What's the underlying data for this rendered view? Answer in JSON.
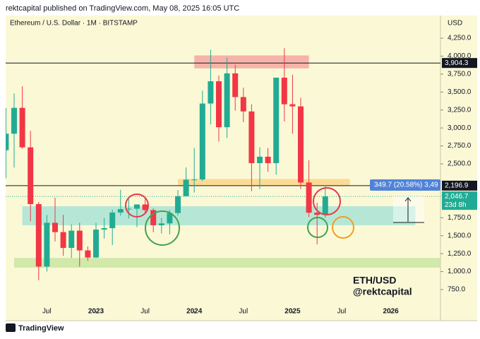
{
  "header": "rektcapital published on TradingView.com, May 08, 2025 16:05 UTC",
  "footer": "TradingView",
  "chart_data": {
    "type": "candlestick",
    "title": "Ethereum / U.S. Dollar · 1M · BITSTAMP",
    "y_axis_label": "USD",
    "x": [
      "2022-02",
      "2022-03",
      "2022-04",
      "2022-05",
      "2022-06",
      "2022-07",
      "2022-08",
      "2022-09",
      "2022-10",
      "2022-11",
      "2022-12",
      "2023-01",
      "2023-02",
      "2023-03",
      "2023-04",
      "2023-05",
      "2023-06",
      "2023-07",
      "2023-08",
      "2023-09",
      "2023-10",
      "2023-11",
      "2023-12",
      "2024-01",
      "2024-02",
      "2024-03",
      "2024-04",
      "2024-05",
      "2024-06",
      "2024-07",
      "2024-08",
      "2024-09",
      "2024-10",
      "2024-11",
      "2024-12",
      "2025-01",
      "2025-02",
      "2025-03",
      "2025-04",
      "2025-05"
    ],
    "open": [
      2690,
      2920,
      3280,
      2730,
      1940,
      1070,
      1680,
      1550,
      1330,
      1570,
      1295,
      1196,
      1585,
      1605,
      1822,
      1870,
      1875,
      1935,
      1856,
      1645,
      1671,
      1815,
      2050,
      2280,
      2283,
      3340,
      3650,
      3010,
      3760,
      3430,
      3230,
      2510,
      2600,
      2510,
      3700,
      3330,
      3300,
      2240,
      1820,
      1790
    ],
    "high": [
      3280,
      3480,
      3580,
      2960,
      1970,
      1790,
      2030,
      1790,
      1660,
      1680,
      1350,
      1680,
      1745,
      1860,
      2140,
      2010,
      1930,
      2030,
      1880,
      1750,
      1860,
      2135,
      2450,
      2720,
      3520,
      4090,
      3730,
      3980,
      3880,
      3560,
      3330,
      2730,
      2720,
      3690,
      4110,
      3740,
      3420,
      2550,
      1960,
      2200
    ],
    "low": [
      2300,
      2450,
      2710,
      1700,
      880,
      1000,
      1420,
      1220,
      1190,
      1070,
      1150,
      1190,
      1460,
      1370,
      1780,
      1740,
      1620,
      1820,
      1550,
      1530,
      1520,
      1780,
      2050,
      2100,
      2260,
      3050,
      2810,
      2860,
      3240,
      3080,
      2120,
      2150,
      2390,
      2350,
      3090,
      2920,
      2150,
      1760,
      1380,
      1750
    ],
    "close": [
      2920,
      3280,
      2730,
      1940,
      1070,
      1680,
      1550,
      1330,
      1570,
      1295,
      1196,
      1585,
      1605,
      1822,
      1870,
      1875,
      1935,
      1856,
      1645,
      1671,
      1815,
      2050,
      2280,
      2283,
      3340,
      3650,
      3010,
      3760,
      3430,
      3230,
      2510,
      2600,
      2510,
      3700,
      3330,
      3300,
      2240,
      1820,
      1790,
      2047
    ],
    "up_color": "#22ab94",
    "down_color": "#f23645",
    "xlim": [
      "2022-01",
      "2026-07"
    ],
    "xticks": [
      {
        "value": "2022-07",
        "label": "Jul"
      },
      {
        "value": "2023-01",
        "label": "2023"
      },
      {
        "value": "2023-07",
        "label": "Jul"
      },
      {
        "value": "2024-01",
        "label": "2024"
      },
      {
        "value": "2024-07",
        "label": "Jul"
      },
      {
        "value": "2025-01",
        "label": "2025"
      },
      {
        "value": "2025-07",
        "label": "Jul"
      },
      {
        "value": "2026-01",
        "label": "2026"
      }
    ],
    "ylim": [
      455,
      4565
    ],
    "yticks": [
      {
        "value": 750,
        "label": "750.0"
      },
      {
        "value": 1000,
        "label": "1,000.0"
      },
      {
        "value": 1250,
        "label": "1,250.0"
      },
      {
        "value": 1500,
        "label": "1,500.0"
      },
      {
        "value": 1750,
        "label": "1,750.0"
      },
      {
        "value": 2500,
        "label": "2,500.0"
      },
      {
        "value": 2750,
        "label": "2,750.0"
      },
      {
        "value": 3000,
        "label": "3,000.0"
      },
      {
        "value": 3250,
        "label": "3,250.0"
      },
      {
        "value": 3500,
        "label": "3,500.0"
      },
      {
        "value": 3750,
        "label": "3,750.0"
      },
      {
        "value": 4000,
        "label": "4,000.0"
      },
      {
        "value": 4250,
        "label": "4,250.0"
      }
    ],
    "grid": false,
    "zones": [
      {
        "from": "2024-01",
        "to": "2025-03",
        "ylim": [
          3830,
          4010
        ],
        "color": "#f4a8a0"
      },
      {
        "from": "2023-11",
        "to": "2025-08",
        "ylim": [
          2195,
          2290
        ],
        "color": "#fbd68c"
      },
      {
        "from": "2022-04",
        "to": "2026-04",
        "ylim": [
          1645,
          1910
        ],
        "color": "#a9e4d6"
      },
      {
        "from": "2022-03",
        "to": "2026-07",
        "ylim": [
          1055,
          1190
        ],
        "color": "#c9e6a2"
      }
    ],
    "price_lines": [
      {
        "value": 3904.3,
        "label": "3,904.3",
        "color": "#131722"
      },
      {
        "value": 2196.9,
        "label": "2,196.9",
        "color": "#131722"
      }
    ],
    "last_price": {
      "value": 2046.7,
      "label": "2,046.7",
      "countdown": "23d 8h",
      "color": "#22ab94"
    },
    "measure_label": "349.7 (20.58%) 3,49",
    "annotations": [
      "ETH/USD",
      "@rektcapital"
    ]
  }
}
